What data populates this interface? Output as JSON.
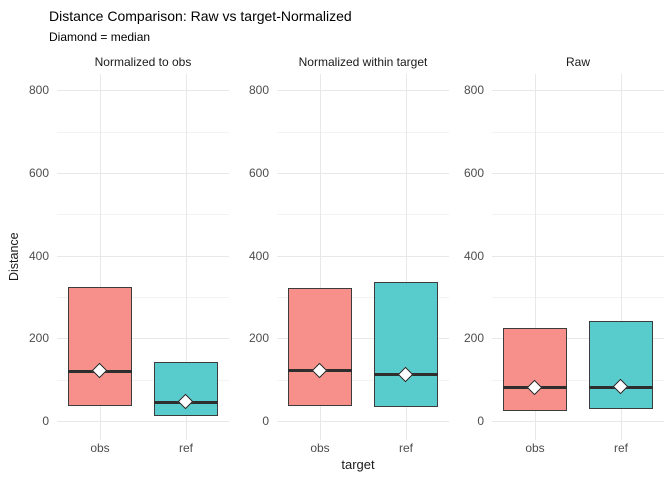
{
  "header": {
    "title": "Distance Comparison: Raw vs target-Normalized",
    "subtitle": "Diamond = median"
  },
  "chart_data": {
    "type": "boxplot",
    "title": "Distance Comparison: Raw vs target-Normalized",
    "subtitle": "Diamond = median",
    "xlabel": "target",
    "ylabel": "Distance",
    "categories": [
      "obs",
      "ref"
    ],
    "y_ticks": [
      0,
      200,
      400,
      600,
      800
    ],
    "y_minor_ticks": [
      100,
      300,
      500,
      700
    ],
    "ylim": [
      0,
      800
    ],
    "legend": "none",
    "grid": "major and minor horizontal, major vertical at categories",
    "median_marker": "white diamond",
    "facets": [
      {
        "label": "Normalized to obs",
        "boxes": [
          {
            "category": "obs",
            "q1": 36,
            "median": 120,
            "q3": 325,
            "diamond": 120
          },
          {
            "category": "ref",
            "q1": 12,
            "median": 45,
            "q3": 142,
            "diamond": 45
          }
        ]
      },
      {
        "label": "Normalized within target",
        "boxes": [
          {
            "category": "obs",
            "q1": 37,
            "median": 122,
            "q3": 322,
            "diamond": 122
          },
          {
            "category": "ref",
            "q1": 35,
            "median": 112,
            "q3": 336,
            "diamond": 112
          }
        ]
      },
      {
        "label": "Raw",
        "boxes": [
          {
            "category": "obs",
            "q1": 25,
            "median": 80,
            "q3": 226,
            "diamond": 80
          },
          {
            "category": "ref",
            "q1": 29,
            "median": 82,
            "q3": 243,
            "diamond": 82
          }
        ]
      }
    ],
    "colors": {
      "fill_obs": "#F7908A",
      "fill_ref": "#58CCCC",
      "box_border": "#3C3C3C",
      "median_line": "#2E2E2E",
      "diamond_border": "#1F1F1F",
      "grid_major": "#E8E8E8",
      "grid_minor": "#F3F3F3",
      "axis_text": "#4D4D4D"
    }
  }
}
